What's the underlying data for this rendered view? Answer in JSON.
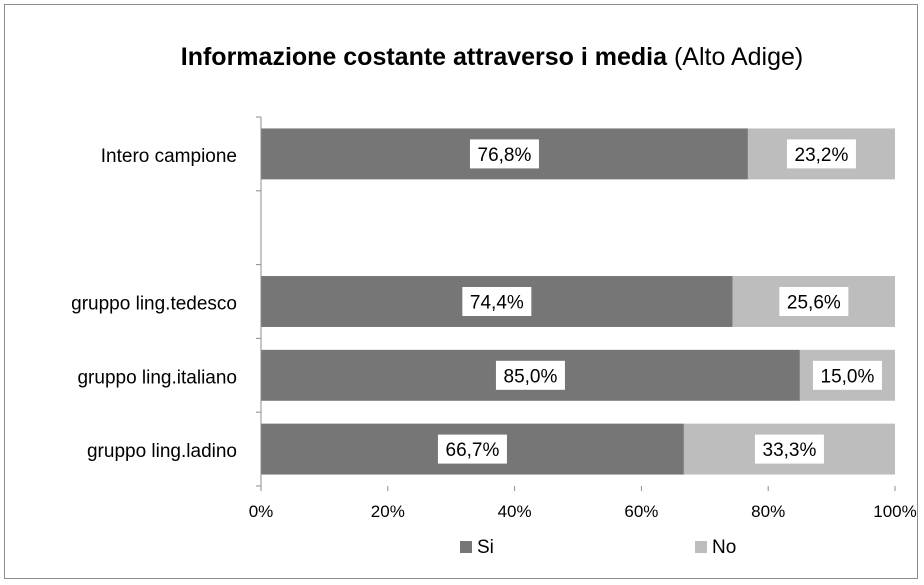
{
  "chart_data": {
    "type": "bar",
    "orientation": "horizontal",
    "stacked": true,
    "title": "Informazione costante attraverso i media",
    "subtitle": "(Alto Adige)",
    "categories": [
      "Intero campione",
      "",
      "gruppo ling.tedesco",
      "gruppo ling.italiano",
      "gruppo ling.ladino"
    ],
    "series": [
      {
        "name": "Si",
        "values": [
          76.8,
          null,
          74.4,
          85.0,
          66.7
        ],
        "labels": [
          "76,8%",
          "",
          "74,4%",
          "85,0%",
          "66,7%"
        ]
      },
      {
        "name": "No",
        "values": [
          23.2,
          null,
          25.6,
          15.0,
          33.3
        ],
        "labels": [
          "23,2%",
          "",
          "25,6%",
          "15,0%",
          "33,3%"
        ]
      }
    ],
    "xlim": [
      0,
      100
    ],
    "xticks": [
      "0%",
      "20%",
      "40%",
      "60%",
      "80%",
      "100%"
    ],
    "grid": false,
    "legend_position": "bottom",
    "colors": {
      "Si": "#767676",
      "No": "#bdbdbd"
    }
  }
}
